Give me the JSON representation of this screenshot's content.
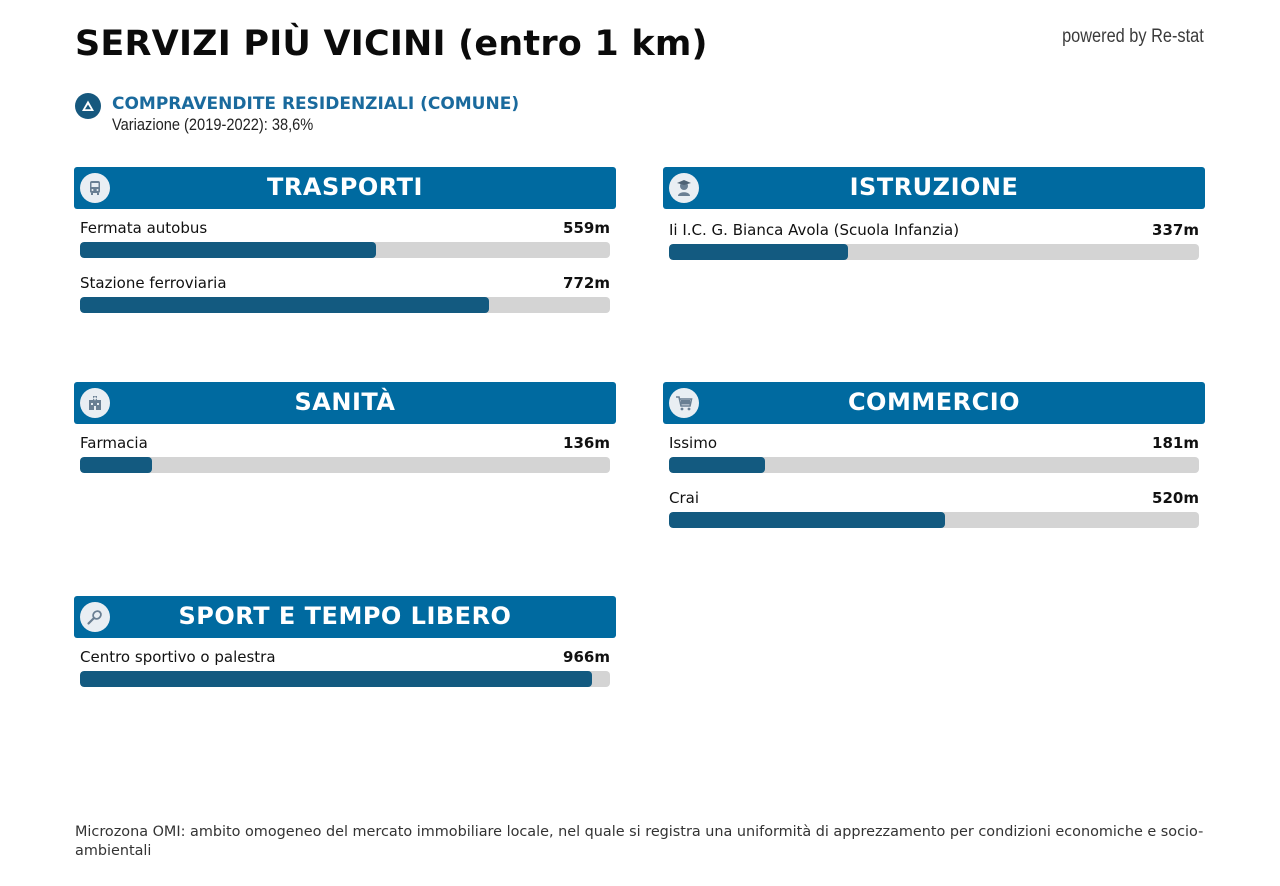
{
  "page": {
    "title": "SERVIZI PIÙ VICINI (entro 1 km)",
    "powered_by": "powered by Re-stat"
  },
  "stat": {
    "icon": "triangle-up-icon",
    "title": "COMPRAVENDITE RESIDENZIALI (COMUNE)",
    "subtitle": "Variazione (2019-2022): 38,6%"
  },
  "scale": {
    "max_m": 1000
  },
  "colors": {
    "header_bg": "#006aa0",
    "bar_fill": "#135a80",
    "bar_track": "#d4d4d4",
    "accent_text": "#1a6a9d"
  },
  "sections": {
    "trasporti": {
      "title": "TRASPORTI",
      "icon": "bus-icon",
      "items": [
        {
          "name": "Fermata autobus",
          "distance": "559m",
          "meters": 559
        },
        {
          "name": "Stazione ferroviaria",
          "distance": "772m",
          "meters": 772
        }
      ]
    },
    "istruzione": {
      "title": "ISTRUZIONE",
      "icon": "student-icon",
      "items": [
        {
          "name": "Ii I.C. G. Bianca Avola (Scuola Infanzia)",
          "distance": "337m",
          "meters": 337
        }
      ]
    },
    "sanita": {
      "title": "SANITÀ",
      "icon": "hospital-icon",
      "items": [
        {
          "name": "Farmacia",
          "distance": "136m",
          "meters": 136
        }
      ]
    },
    "commercio": {
      "title": "COMMERCIO",
      "icon": "shopping-cart-icon",
      "items": [
        {
          "name": "Issimo",
          "distance": "181m",
          "meters": 181
        },
        {
          "name": "Crai",
          "distance": "520m",
          "meters": 520
        }
      ]
    },
    "sport": {
      "title": "SPORT E TEMPO LIBERO",
      "icon": "tennis-racket-icon",
      "items": [
        {
          "name": "Centro sportivo o palestra",
          "distance": "966m",
          "meters": 966
        }
      ]
    }
  },
  "footer": {
    "note": "Microzona OMI: ambito omogeneo del mercato immobiliare locale, nel quale si registra una uniformità di apprezzamento per condizioni economiche e socio-ambientali"
  }
}
